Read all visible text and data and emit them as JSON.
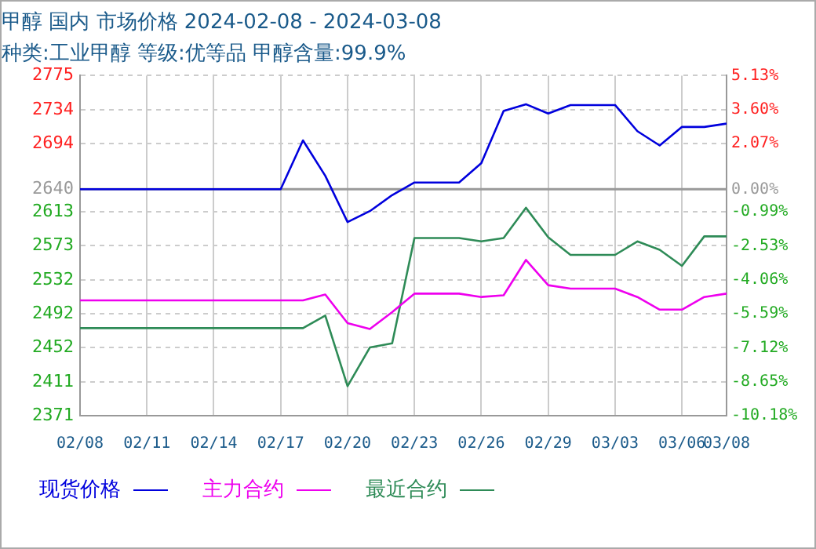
{
  "chart_data": {
    "type": "line",
    "title": "甲醇 国内 市场价格 2024-02-08 - 2024-03-08",
    "subtitle": "种类:工业甲醇 等级:优等品 甲醇含量:99.9%",
    "x": [
      "2024-02-08",
      "2024-02-17",
      "2024-02-18",
      "2024-02-19",
      "2024-02-20",
      "2024-02-21",
      "2024-02-22",
      "2024-02-23",
      "2024-02-25",
      "2024-02-26",
      "2024-02-27",
      "2024-02-28",
      "2024-02-29",
      "2024-03-01",
      "2024-03-03",
      "2024-03-04",
      "2024-03-05",
      "2024-03-06",
      "2024-03-07",
      "2024-03-08"
    ],
    "series": [
      {
        "name": "现货价格",
        "color": "#0000dd",
        "values": [
          2640,
          2640,
          2698,
          2656,
          2601,
          2614,
          2633,
          2648,
          2648,
          2671,
          2733,
          2741,
          2730,
          2740,
          2740,
          2709,
          2692,
          2714,
          2714,
          2718
        ]
      },
      {
        "name": "主力合约",
        "color": "#ee00ee",
        "values": [
          2508,
          2508,
          2508,
          2515,
          2481,
          2474,
          2494,
          2516,
          2516,
          2512,
          2514,
          2556,
          2526,
          2522,
          2522,
          2512,
          2497,
          2497,
          2512,
          2516
        ]
      },
      {
        "name": "最近合约",
        "color": "#2e8b57",
        "values": [
          2475,
          2475,
          2475,
          2490,
          2406,
          2452,
          2457,
          2582,
          2582,
          2578,
          2582,
          2618,
          2583,
          2562,
          2562,
          2578,
          2568,
          2549,
          2584,
          2584
        ]
      }
    ],
    "xlim": [
      "2024-02-08",
      "2024-03-08"
    ],
    "xticks": [
      {
        "value": "2024-02-08",
        "label": "02/08"
      },
      {
        "value": "2024-02-11",
        "label": "02/11"
      },
      {
        "value": "2024-02-14",
        "label": "02/14"
      },
      {
        "value": "2024-02-17",
        "label": "02/17"
      },
      {
        "value": "2024-02-20",
        "label": "02/20"
      },
      {
        "value": "2024-02-23",
        "label": "02/23"
      },
      {
        "value": "2024-02-26",
        "label": "02/26"
      },
      {
        "value": "2024-02-29",
        "label": "02/29"
      },
      {
        "value": "2024-03-03",
        "label": "03/03"
      },
      {
        "value": "2024-03-06",
        "label": "03/06"
      },
      {
        "value": "2024-03-08",
        "label": "03/08"
      }
    ],
    "ylim": [
      2371,
      2775
    ],
    "yticks": [
      2775,
      2734,
      2694,
      2640,
      2613,
      2573,
      2532,
      2492,
      2452,
      2411,
      2371
    ],
    "y2lim": [
      -10.18,
      5.13
    ],
    "y2ticks": [
      {
        "value": 5.13,
        "label": "5.13%"
      },
      {
        "value": 3.6,
        "label": "3.60%"
      },
      {
        "value": 2.07,
        "label": "2.07%"
      },
      {
        "value": 0,
        "label": "0.00%"
      },
      {
        "value": -0.99,
        "label": "-0.99%"
      },
      {
        "value": -2.53,
        "label": "-2.53%"
      },
      {
        "value": -4.06,
        "label": "-4.06%"
      },
      {
        "value": -5.59,
        "label": "-5.59%"
      },
      {
        "value": -7.12,
        "label": "-7.12%"
      },
      {
        "value": -8.65,
        "label": "-8.65%"
      },
      {
        "value": -10.18,
        "label": "-10.18%"
      }
    ],
    "ref_lines": [
      {
        "axis": "y",
        "value": 2640,
        "color": "#999999"
      }
    ],
    "grid": true,
    "legend": "bottom left",
    "marker": "none",
    "line_style": "solid"
  }
}
